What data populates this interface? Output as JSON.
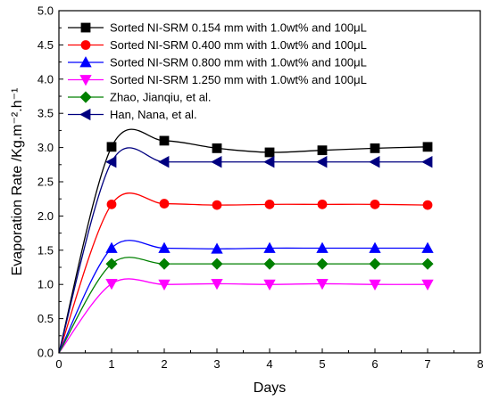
{
  "chart_data": {
    "type": "line",
    "title": "",
    "xlabel": "Days",
    "ylabel": "Evaporation Rate /Kg.m⁻².h⁻¹",
    "xlim": [
      0,
      8
    ],
    "ylim": [
      0.0,
      5.0
    ],
    "x_ticks": [
      "0",
      "1",
      "2",
      "3",
      "4",
      "5",
      "6",
      "7",
      "8"
    ],
    "y_ticks": [
      "0.0",
      "0.5",
      "1.0",
      "1.5",
      "2.0",
      "2.5",
      "3.0",
      "3.5",
      "4.0",
      "4.5",
      "5.0"
    ],
    "grid": false,
    "legend_position": "top-left",
    "smooth": true,
    "x": [
      0,
      1,
      2,
      3,
      4,
      5,
      6,
      7
    ],
    "series": [
      {
        "name": "Sorted NI-SRM 0.154 mm with 1.0wt% and 100μL",
        "color": "#000000",
        "marker": "square",
        "values": [
          0.0,
          3.01,
          3.1,
          2.99,
          2.93,
          2.96,
          2.99,
          3.01
        ]
      },
      {
        "name": "Sorted NI-SRM 0.400 mm with 1.0wt% and 100μL",
        "color": "#ff0000",
        "marker": "circle",
        "values": [
          0.0,
          2.17,
          2.18,
          2.16,
          2.17,
          2.17,
          2.17,
          2.16
        ]
      },
      {
        "name": "Sorted NI-SRM 0.800 mm with 1.0wt% and 100μL",
        "color": "#0000ff",
        "marker": "triangle-up",
        "values": [
          0.0,
          1.53,
          1.53,
          1.52,
          1.53,
          1.53,
          1.53,
          1.53
        ]
      },
      {
        "name": "Sorted NI-SRM 1.250 mm with 1.0wt% and 100μL",
        "color": "#ff00ff",
        "marker": "triangle-down",
        "values": [
          0.0,
          1.01,
          1.0,
          1.01,
          1.0,
          1.01,
          1.0,
          1.0
        ]
      },
      {
        "name": "Zhao, Jianqiu, et al.",
        "color": "#008000",
        "marker": "diamond",
        "values": [
          0.0,
          1.3,
          1.3,
          1.3,
          1.3,
          1.3,
          1.3,
          1.3
        ]
      },
      {
        "name": "Han, Nana, et al.",
        "color": "#000080",
        "marker": "triangle-left",
        "values": [
          0.0,
          2.79,
          2.79,
          2.79,
          2.79,
          2.79,
          2.79,
          2.79
        ]
      }
    ]
  }
}
